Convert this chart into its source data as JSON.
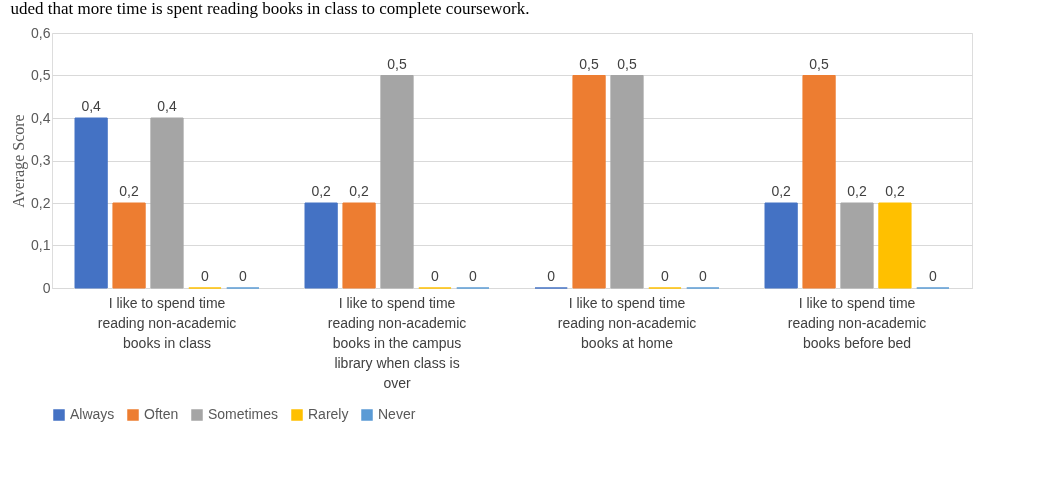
{
  "chart_data": {
    "type": "bar",
    "annotations": [
      "uded that more time is spent reading books in class to complete coursework."
    ],
    "ylabel": "Average Score",
    "categories": [
      "I like to spend time reading non-academic books in class",
      "I like to spend time reading non-academic books in the campus library when class is over",
      "I like to spend time reading non-academic books at home",
      "I like to spend time reading non-academic books before bed"
    ],
    "series": [
      {
        "name": "Always",
        "color": "#4472c4",
        "values": [
          0.4,
          0.2,
          0,
          0.2
        ],
        "value_labels": [
          "0,4",
          "0,2",
          "0",
          "0,2"
        ]
      },
      {
        "name": "Often",
        "color": "#ed7d31",
        "values": [
          0.2,
          0.2,
          0.5,
          0.5
        ],
        "value_labels": [
          "0,2",
          "0,2",
          "0,5",
          "0,5"
        ]
      },
      {
        "name": "Sometimes",
        "color": "#a5a5a5",
        "values": [
          0.4,
          0.5,
          0.5,
          0.2
        ],
        "value_labels": [
          "0,4",
          "0,5",
          "0,5",
          "0,2"
        ]
      },
      {
        "name": "Rarely",
        "color": "#ffc000",
        "values": [
          0,
          0,
          0,
          0.2
        ],
        "value_labels": [
          "0",
          "0",
          "0",
          "0,2"
        ]
      },
      {
        "name": "Never",
        "color": "#5b9bd5",
        "values": [
          0,
          0,
          0,
          0
        ],
        "value_labels": [
          "0",
          "0",
          "0",
          "0"
        ]
      }
    ],
    "ylim": [
      0,
      0.6
    ],
    "yticks": [
      {
        "value": 0,
        "label": "0"
      },
      {
        "value": 0.1,
        "label": "0,1"
      },
      {
        "value": 0.2,
        "label": "0,2"
      },
      {
        "value": 0.3,
        "label": "0,3"
      },
      {
        "value": 0.4,
        "label": "0,4"
      },
      {
        "value": 0.5,
        "label": "0,5"
      },
      {
        "value": 0.6,
        "label": "0,6"
      }
    ],
    "grid": "y",
    "legend": "bottom"
  }
}
